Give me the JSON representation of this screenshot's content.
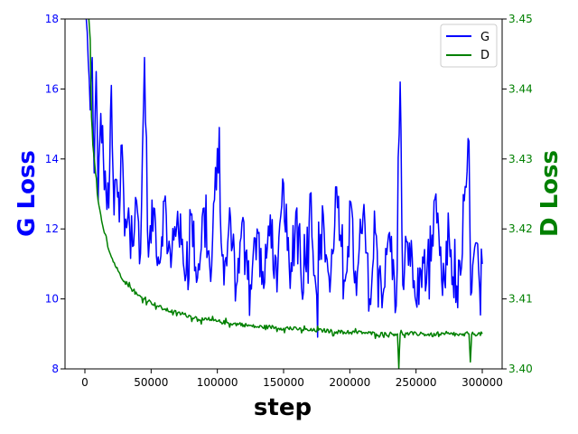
{
  "chart_data": {
    "type": "line",
    "xlabel": "step",
    "ylabel_left": "G Loss",
    "ylabel_right": "D Loss",
    "xlim": [
      -15000,
      315000
    ],
    "ylim_left": [
      8,
      18
    ],
    "ylim_right": [
      3.4,
      3.45
    ],
    "x_ticks": [
      0,
      50000,
      100000,
      150000,
      200000,
      250000,
      300000
    ],
    "x_tick_labels": [
      "0",
      "50000",
      "100000",
      "150000",
      "200000",
      "250000",
      "300000"
    ],
    "y_ticks_left": [
      8,
      10,
      12,
      14,
      16,
      18
    ],
    "y_tick_labels_left": [
      "8",
      "10",
      "12",
      "14",
      "16",
      "18"
    ],
    "y_ticks_right": [
      3.4,
      3.41,
      3.42,
      3.43,
      3.44,
      3.45
    ],
    "y_tick_labels_right": [
      "3.40",
      "3.41",
      "3.42",
      "3.43",
      "3.44",
      "3.45"
    ],
    "grid": false,
    "legend_position": "top-right",
    "series": [
      {
        "name": "G",
        "axis": "left",
        "color": "#0000ff",
        "x": [
          1000,
          2500,
          4000,
          5500,
          7000,
          8500,
          10000,
          12000,
          14000,
          16000,
          18000,
          20000,
          22000,
          24000,
          26000,
          28000,
          30000,
          33000,
          36000,
          39000,
          42000,
          45000,
          48000,
          52000,
          56000,
          60000,
          65000,
          70000,
          75000,
          80000,
          85000,
          90000,
          95000,
          100000,
          105000,
          110000,
          115000,
          120000,
          125000,
          130000,
          135000,
          140000,
          145000,
          150000,
          155000,
          160000,
          165000,
          170000,
          175000,
          180000,
          185000,
          190000,
          195000,
          200000,
          205000,
          210000,
          215000,
          220000,
          225000,
          230000,
          235000,
          238000,
          240000,
          245000,
          250000,
          255000,
          260000,
          265000,
          270000,
          275000,
          280000,
          285000,
          290000,
          292000,
          295000,
          298000,
          300000
        ],
        "y": [
          18.0,
          16.8,
          15.4,
          16.9,
          13.6,
          16.5,
          12.8,
          15.3,
          14.0,
          13.0,
          12.6,
          16.1,
          12.4,
          13.4,
          12.2,
          14.4,
          11.8,
          12.6,
          11.5,
          12.8,
          11.3,
          16.9,
          11.2,
          12.6,
          11.0,
          12.8,
          10.9,
          12.5,
          10.8,
          12.4,
          10.6,
          12.6,
          10.5,
          14.3,
          10.4,
          12.3,
          10.5,
          12.2,
          10.4,
          12.0,
          10.3,
          12.4,
          10.2,
          13.3,
          10.3,
          12.6,
          10.2,
          13.0,
          10.1,
          12.4,
          10.2,
          13.2,
          10.0,
          12.8,
          10.1,
          12.4,
          10.0,
          11.8,
          10.1,
          11.9,
          9.8,
          16.2,
          10.4,
          11.6,
          9.9,
          11.2,
          10.0,
          13.0,
          10.1,
          11.8,
          9.9,
          11.3,
          14.5,
          10.2,
          11.6,
          10.3,
          11.0
        ],
        "note_noise_amplitude": 1.0
      },
      {
        "name": "D",
        "axis": "right",
        "color": "#008000",
        "x": [
          3000,
          4000,
          5000,
          6000,
          8000,
          10000,
          12000,
          14000,
          16000,
          18000,
          20000,
          25000,
          30000,
          35000,
          40000,
          45000,
          50000,
          60000,
          70000,
          80000,
          90000,
          100000,
          110000,
          120000,
          130000,
          140000,
          150000,
          160000,
          170000,
          180000,
          190000,
          200000,
          210000,
          220000,
          230000,
          236000,
          237000,
          238000,
          245000,
          255000,
          265000,
          275000,
          285000,
          290000,
          291000,
          292000,
          300000
        ],
        "y": [
          3.45,
          3.447,
          3.436,
          3.432,
          3.428,
          3.424,
          3.422,
          3.42,
          3.419,
          3.417,
          3.416,
          3.414,
          3.4125,
          3.4115,
          3.4105,
          3.41,
          3.4095,
          3.4085,
          3.408,
          3.4075,
          3.407,
          3.4068,
          3.4065,
          3.4063,
          3.406,
          3.406,
          3.4058,
          3.4057,
          3.4055,
          3.4055,
          3.4053,
          3.4052,
          3.4052,
          3.405,
          3.405,
          3.405,
          3.4,
          3.405,
          3.405,
          3.405,
          3.4048,
          3.405,
          3.4048,
          3.405,
          3.401,
          3.405,
          3.405
        ],
        "note_noise_amplitude": 0.0004
      }
    ]
  },
  "colors": {
    "g_axis": "#0000ff",
    "d_axis": "#008000",
    "frame": "#000000"
  }
}
